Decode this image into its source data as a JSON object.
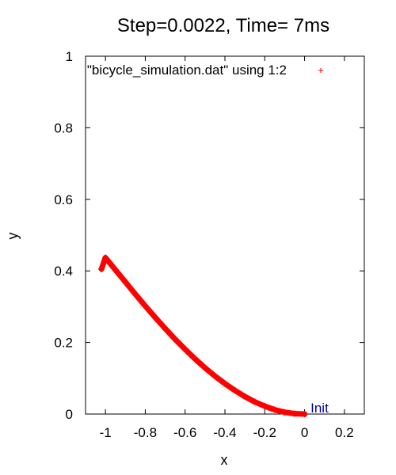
{
  "chart_data": {
    "type": "scatter",
    "title": "Step=0.0022, Time= 7ms",
    "xlabel": "x",
    "ylabel": "y",
    "xlim": [
      -1.1,
      0.3
    ],
    "ylim": [
      0,
      1
    ],
    "grid": false,
    "legend_placement": "top-right",
    "x_ticks": [
      {
        "value": -1,
        "label": "-1"
      },
      {
        "value": -0.8,
        "label": "-0.8"
      },
      {
        "value": -0.6,
        "label": "-0.6"
      },
      {
        "value": -0.4,
        "label": "-0.4"
      },
      {
        "value": -0.2,
        "label": "-0.2"
      },
      {
        "value": 0,
        "label": "0"
      },
      {
        "value": 0.2,
        "label": "0.2"
      }
    ],
    "y_ticks": [
      {
        "value": 0,
        "label": "0"
      },
      {
        "value": 0.2,
        "label": "0.2"
      },
      {
        "value": 0.4,
        "label": "0.4"
      },
      {
        "value": 0.6,
        "label": "0.6"
      },
      {
        "value": 0.8,
        "label": "0.8"
      },
      {
        "value": 1,
        "label": "1"
      }
    ],
    "series": [
      {
        "name": "\"bicycle_simulation.dat\" using 1:2",
        "color": "#ff0000",
        "marker": "plus",
        "x": [
          0.0,
          -0.05,
          -0.1,
          -0.15,
          -0.2,
          -0.25,
          -0.3,
          -0.35,
          -0.4,
          -0.45,
          -0.5,
          -0.55,
          -0.6,
          -0.65,
          -0.7,
          -0.75,
          -0.8,
          -0.85,
          -0.9,
          -0.95,
          -1.0,
          -1.02
        ],
        "y": [
          0.0,
          0.001,
          0.005,
          0.012,
          0.022,
          0.034,
          0.049,
          0.066,
          0.085,
          0.106,
          0.129,
          0.154,
          0.181,
          0.209,
          0.239,
          0.27,
          0.302,
          0.335,
          0.369,
          0.403,
          0.437,
          0.405
        ]
      }
    ],
    "annotations": [
      {
        "text": "Init",
        "x": 0.03,
        "y": 0.0,
        "color": "#0000a0"
      }
    ]
  }
}
